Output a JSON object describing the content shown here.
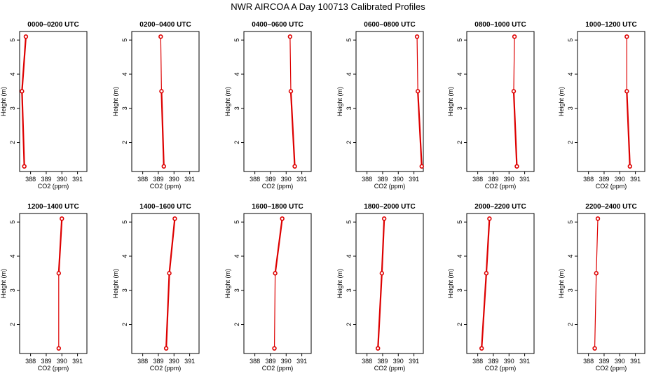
{
  "title": "NWR AIRCOA A  Day 100713  Calibrated Profiles",
  "chart_data": {
    "type": "line",
    "title": "NWR AIRCOA A  Day 100713  Calibrated Profiles",
    "xlabel": "CO2 (ppm)",
    "ylabel": "Height (m)",
    "xlim": [
      387.3,
      391.6
    ],
    "ylim": [
      1.15,
      5.25
    ],
    "x_ticks": [
      388,
      389,
      390,
      391
    ],
    "y_ticks": [
      2,
      3,
      4,
      5
    ],
    "grid": false,
    "color": "#dd0000",
    "panels": [
      {
        "title": "0000–0200 UTC",
        "heights": [
          1.3,
          3.5,
          5.1
        ],
        "values": [
          387.6,
          387.45,
          387.7
        ]
      },
      {
        "title": "0200–0400 UTC",
        "heights": [
          1.3,
          3.5,
          5.1
        ],
        "values": [
          389.35,
          389.2,
          389.15
        ]
      },
      {
        "title": "0400–0600 UTC",
        "heights": [
          1.3,
          3.5,
          5.1
        ],
        "values": [
          390.55,
          390.3,
          390.25
        ]
      },
      {
        "title": "0600–0800 UTC",
        "heights": [
          1.3,
          3.5,
          5.1
        ],
        "values": [
          391.5,
          391.25,
          391.2
        ]
      },
      {
        "title": "0800–1000 UTC",
        "heights": [
          1.3,
          3.5,
          5.1
        ],
        "values": [
          390.5,
          390.3,
          390.35
        ]
      },
      {
        "title": "1000–1200 UTC",
        "heights": [
          1.3,
          3.5,
          5.1
        ],
        "values": [
          390.65,
          390.45,
          390.45
        ]
      },
      {
        "title": "1200–1400 UTC",
        "heights": [
          1.3,
          3.5,
          5.1
        ],
        "values": [
          389.8,
          389.8,
          390.0
        ]
      },
      {
        "title": "1400–1600 UTC",
        "heights": [
          1.3,
          3.5,
          5.1
        ],
        "values": [
          389.5,
          389.7,
          390.05
        ]
      },
      {
        "title": "1600–1800 UTC",
        "heights": [
          1.3,
          3.5,
          5.1
        ],
        "values": [
          389.25,
          389.3,
          389.75
        ]
      },
      {
        "title": "1800–2000 UTC",
        "heights": [
          1.3,
          3.5,
          5.1
        ],
        "values": [
          388.7,
          388.95,
          389.1
        ]
      },
      {
        "title": "2000–2200 UTC",
        "heights": [
          1.3,
          3.5,
          5.1
        ],
        "values": [
          388.25,
          388.55,
          388.75
        ]
      },
      {
        "title": "2200–2400 UTC",
        "heights": [
          1.3,
          3.5,
          5.1
        ],
        "values": [
          388.4,
          388.5,
          388.6
        ]
      }
    ]
  }
}
